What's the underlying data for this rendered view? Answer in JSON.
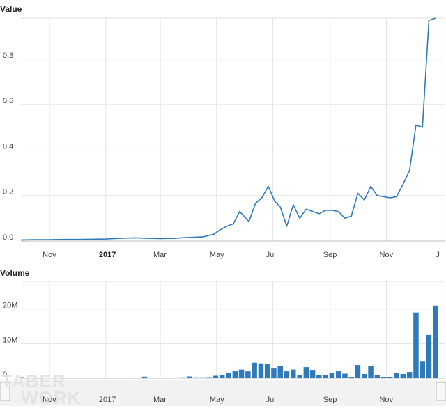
{
  "colors": {
    "series": "#2f7ab9",
    "grid": "#e2e2e2"
  },
  "value_panel": {
    "title": "Value"
  },
  "volume_panel": {
    "title": "Volume"
  },
  "x_axis": {
    "ticks": [
      {
        "label": "Nov",
        "date": "2016-11-01",
        "bold": false
      },
      {
        "label": "2017",
        "date": "2017-01-01",
        "bold": true
      },
      {
        "label": "Mar",
        "date": "2017-03-01",
        "bold": false
      },
      {
        "label": "May",
        "date": "2017-05-01",
        "bold": false
      },
      {
        "label": "Jul",
        "date": "2017-07-01",
        "bold": false
      },
      {
        "label": "Sep",
        "date": "2017-09-01",
        "bold": false
      },
      {
        "label": "Nov",
        "date": "2017-11-01",
        "bold": false
      },
      {
        "label": "J",
        "date": "2018-01-01",
        "bold": false
      }
    ]
  },
  "watermark": {
    "line1": "TABER",
    "line2": "WORK"
  },
  "footer": {
    "text": ""
  },
  "chart_data": [
    {
      "type": "line",
      "title": "Value",
      "xlabel": "",
      "ylabel": "",
      "xlim": [
        "2016-10-01",
        "2018-01-03"
      ],
      "ylim": [
        0,
        0.98
      ],
      "yticks": [
        "0.0",
        "0.2",
        "0.4",
        "0.6",
        "0.8"
      ],
      "grid": true,
      "series": [
        {
          "x": [
            "2016-10-01",
            "2016-10-16",
            "2016-11-01",
            "2016-11-16",
            "2016-12-01",
            "2016-12-16",
            "2017-01-01",
            "2017-01-16",
            "2017-02-01",
            "2017-02-16",
            "2017-03-01",
            "2017-03-16",
            "2017-04-01",
            "2017-04-16",
            "2017-04-28",
            "2017-05-05",
            "2017-05-12",
            "2017-05-19",
            "2017-05-26",
            "2017-06-05",
            "2017-06-12",
            "2017-06-19",
            "2017-06-26",
            "2017-07-03",
            "2017-07-09",
            "2017-07-16",
            "2017-07-23",
            "2017-07-30",
            "2017-08-06",
            "2017-08-13",
            "2017-08-20",
            "2017-08-27",
            "2017-09-03",
            "2017-09-10",
            "2017-09-17",
            "2017-09-24",
            "2017-10-01",
            "2017-10-08",
            "2017-10-15",
            "2017-10-22",
            "2017-10-29",
            "2017-11-05",
            "2017-11-12",
            "2017-11-19",
            "2017-11-26",
            "2017-12-03",
            "2017-12-10",
            "2017-12-17",
            "2017-12-24"
          ],
          "y": [
            0.005,
            0.006,
            0.006,
            0.007,
            0.007,
            0.008,
            0.009,
            0.012,
            0.014,
            0.012,
            0.011,
            0.012,
            0.016,
            0.018,
            0.03,
            0.05,
            0.065,
            0.075,
            0.13,
            0.085,
            0.165,
            0.19,
            0.24,
            0.175,
            0.15,
            0.065,
            0.16,
            0.1,
            0.14,
            0.13,
            0.12,
            0.135,
            0.135,
            0.13,
            0.1,
            0.11,
            0.21,
            0.18,
            0.24,
            0.2,
            0.195,
            0.19,
            0.195,
            0.25,
            0.31,
            0.51,
            0.5,
            0.97,
            0.98
          ]
        }
      ]
    },
    {
      "type": "bar",
      "title": "Volume",
      "xlabel": "",
      "ylabel": "",
      "xlim": [
        "2016-10-01",
        "2018-01-03"
      ],
      "ylim": [
        0,
        28000000
      ],
      "yticks": [
        "0",
        "10M",
        "20M"
      ],
      "grid": true,
      "series": [
        {
          "x": [
            "2016-10-02",
            "2016-10-09",
            "2016-10-16",
            "2016-10-23",
            "2016-10-30",
            "2016-11-06",
            "2016-11-13",
            "2016-11-20",
            "2016-11-27",
            "2016-12-04",
            "2016-12-11",
            "2016-12-18",
            "2016-12-25",
            "2017-01-01",
            "2017-01-08",
            "2017-01-15",
            "2017-01-22",
            "2017-01-29",
            "2017-02-05",
            "2017-02-12",
            "2017-02-19",
            "2017-02-26",
            "2017-03-05",
            "2017-03-12",
            "2017-03-19",
            "2017-03-26",
            "2017-04-02",
            "2017-04-09",
            "2017-04-16",
            "2017-04-23",
            "2017-04-30",
            "2017-05-07",
            "2017-05-14",
            "2017-05-21",
            "2017-05-28",
            "2017-06-04",
            "2017-06-11",
            "2017-06-18",
            "2017-06-25",
            "2017-07-02",
            "2017-07-09",
            "2017-07-16",
            "2017-07-23",
            "2017-07-30",
            "2017-08-06",
            "2017-08-13",
            "2017-08-20",
            "2017-08-27",
            "2017-09-03",
            "2017-09-10",
            "2017-09-17",
            "2017-09-24",
            "2017-10-01",
            "2017-10-08",
            "2017-10-15",
            "2017-10-22",
            "2017-10-29",
            "2017-11-05",
            "2017-11-12",
            "2017-11-19",
            "2017-11-26",
            "2017-12-03",
            "2017-12-10",
            "2017-12-17",
            "2017-12-24"
          ],
          "y": [
            300000,
            150000,
            150000,
            120000,
            120000,
            150000,
            150000,
            150000,
            180000,
            150000,
            150000,
            180000,
            150000,
            200000,
            150000,
            180000,
            150000,
            150000,
            150000,
            450000,
            200000,
            200000,
            200000,
            200000,
            200000,
            250000,
            500000,
            250000,
            250000,
            300000,
            700000,
            900000,
            1500000,
            2000000,
            2500000,
            2000000,
            4500000,
            4300000,
            4000000,
            3000000,
            3500000,
            2000000,
            2500000,
            800000,
            3200000,
            2400000,
            1000000,
            1000000,
            1500000,
            2000000,
            1300000,
            400000,
            3800000,
            1200000,
            3500000,
            800000,
            400000,
            400000,
            1500000,
            1200000,
            1800000,
            19000000,
            5000000,
            12500000,
            21000000
          ]
        }
      ]
    }
  ]
}
